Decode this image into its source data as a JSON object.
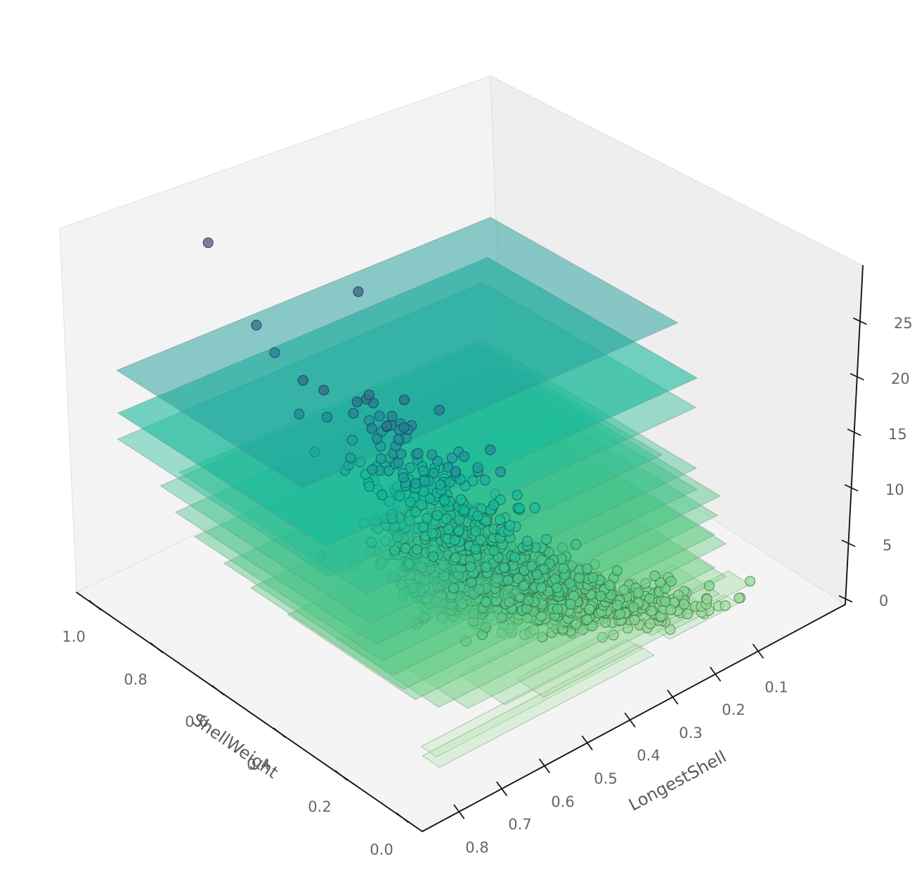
{
  "figure": {
    "background": "#ffffff",
    "kind": "3D scatter plot with horizontal class planes"
  },
  "colors": {
    "pane_left": "#f3f3f3",
    "pane_right": "#eeeeee",
    "pane_floor": "#f4f4f4",
    "pane_edge": "#dfdfdf",
    "spine": "#141414",
    "tick_label": "#666666",
    "axis_label": "#5a5a5a"
  },
  "chart_data": {
    "type": "scatter",
    "projection": "3d",
    "title": "",
    "legend": "none",
    "grid": "off",
    "axes": {
      "x": {
        "label": "LongestShell",
        "ticks": [
          0.8,
          0.7,
          0.6,
          0.5,
          0.4,
          0.3,
          0.2,
          0.1
        ],
        "range": [
          -0.104,
          0.886
        ],
        "note": "values decrease toward right corner"
      },
      "y": {
        "label": "ShellWeight",
        "ticks": [
          1.0,
          0.8,
          0.6,
          0.4,
          0.2,
          0.0
        ],
        "range": [
          -0.064,
          1.06
        ],
        "note": "values decrease toward front corner"
      },
      "z": {
        "label": "",
        "ticks": [
          0,
          5,
          10,
          15,
          20,
          25
        ],
        "range": [
          -0.5,
          30.0
        ]
      }
    },
    "colormap": {
      "name": "green-to-navy (crest-like, high z = dark blue)",
      "domain": [
        0,
        29
      ],
      "stops": [
        [
          0.0,
          "#c5ecbc"
        ],
        [
          0.08,
          "#a6e1a5"
        ],
        [
          0.17,
          "#84d68f"
        ],
        [
          0.26,
          "#64cd85"
        ],
        [
          0.35,
          "#4ac488"
        ],
        [
          0.45,
          "#2ebe93"
        ],
        [
          0.55,
          "#14b99b"
        ],
        [
          0.62,
          "#1d9f9c"
        ],
        [
          0.7,
          "#23869a"
        ],
        [
          0.8,
          "#2f6e8e"
        ],
        [
          0.9,
          "#405c81"
        ],
        [
          1.0,
          "#4b5b7e"
        ]
      ]
    },
    "point_style": {
      "radius": 7.0,
      "fill_alpha": 0.75,
      "edge_darken": 0.42,
      "edge_alpha": 0.85,
      "edge_width": 1.1
    },
    "plane_style": {
      "edge_color": "#6f8a7c",
      "edge_alpha": 0.5,
      "edge_width": 1
    },
    "planes": [
      {
        "z": 18.0,
        "x": [
          -0.05,
          0.812
        ],
        "y": [
          0.418,
          1.002
        ],
        "alpha": 0.5
      },
      {
        "z": 16.0,
        "x": [
          0.0,
          0.853
        ],
        "y": [
          0.288,
          0.945
        ],
        "alpha": 0.58
      },
      {
        "z": 14.5,
        "x": [
          0.03,
          0.872
        ],
        "y": [
          0.25,
          0.922
        ],
        "alpha": 0.42
      },
      {
        "z": 13.0,
        "x": [
          0.14,
          0.82
        ],
        "y": [
          0.205,
          0.8
        ],
        "alpha": 0.4
      },
      {
        "z": 12.0,
        "x": [
          0.1,
          0.85
        ],
        "y": [
          0.15,
          0.82
        ],
        "alpha": 0.4
      },
      {
        "z": 11.0,
        "x": [
          0.12,
          0.86
        ],
        "y": [
          0.12,
          0.76
        ],
        "alpha": 0.42
      },
      {
        "z": 10.0,
        "x": [
          0.08,
          0.86
        ],
        "y": [
          0.1,
          0.7
        ],
        "alpha": 0.45
      },
      {
        "z": 9.0,
        "x": [
          0.1,
          0.85
        ],
        "y": [
          0.08,
          0.62
        ],
        "alpha": 0.45
      },
      {
        "z": 8.0,
        "x": [
          0.12,
          0.84
        ],
        "y": [
          0.06,
          0.55
        ],
        "alpha": 0.45
      },
      {
        "z": 7.0,
        "x": [
          0.1,
          0.82
        ],
        "y": [
          0.05,
          0.46
        ],
        "alpha": 0.45
      },
      {
        "z": 6.0,
        "x": [
          0.14,
          0.78
        ],
        "y": [
          0.03,
          0.36
        ],
        "alpha": 0.45
      },
      {
        "z": 5.0,
        "x": [
          0.12,
          0.72
        ],
        "y": [
          0.02,
          0.25
        ],
        "alpha": 0.42
      },
      {
        "z": 4.0,
        "x": [
          0.14,
          0.64
        ],
        "y": [
          0.012,
          0.16
        ],
        "alpha": 0.4
      },
      {
        "z": 3.5,
        "x": [
          0.07,
          0.3
        ],
        "y": [
          0.01,
          0.08
        ],
        "alpha": 0.38
      },
      {
        "z": 3.0,
        "x": [
          0.16,
          0.55
        ],
        "y": [
          0.01,
          0.1
        ],
        "alpha": 0.38
      },
      {
        "z": 2.5,
        "x": [
          0.1,
          0.26
        ],
        "y": [
          0.005,
          0.05
        ],
        "alpha": 0.35
      },
      {
        "z": 2.0,
        "x": [
          0.3,
          0.8
        ],
        "y": [
          0.0,
          0.055
        ],
        "alpha": 0.33
      },
      {
        "z": 1.0,
        "x": [
          0.28,
          0.76
        ],
        "y": [
          0.065,
          0.115
        ],
        "alpha": 0.33
      }
    ],
    "outlier_points": [
      {
        "x": 0.68,
        "y": 0.88,
        "z": 29
      },
      {
        "x": 0.48,
        "y": 0.69,
        "z": 25
      },
      {
        "x": 0.645,
        "y": 0.785,
        "z": 23
      },
      {
        "x": 0.63,
        "y": 0.75,
        "z": 21
      }
    ],
    "clusters": [
      {
        "rings": 3,
        "n": 8,
        "x_mean": 0.19,
        "x_sd": 0.05,
        "y_mean": 0.015,
        "y_sd": 0.008
      },
      {
        "rings": 4,
        "n": 26,
        "x_mean": 0.245,
        "x_sd": 0.055,
        "y_mean": 0.027,
        "y_sd": 0.013
      },
      {
        "rings": 5,
        "n": 52,
        "x_mean": 0.3,
        "x_sd": 0.065,
        "y_mean": 0.048,
        "y_sd": 0.022
      },
      {
        "rings": 6,
        "n": 110,
        "x_mean": 0.385,
        "x_sd": 0.075,
        "y_mean": 0.082,
        "y_sd": 0.032
      },
      {
        "rings": 7,
        "n": 165,
        "x_mean": 0.44,
        "x_sd": 0.075,
        "y_mean": 0.115,
        "y_sd": 0.042
      },
      {
        "rings": 8,
        "n": 240,
        "x_mean": 0.49,
        "x_sd": 0.07,
        "y_mean": 0.155,
        "y_sd": 0.05
      },
      {
        "rings": 9,
        "n": 290,
        "x_mean": 0.525,
        "x_sd": 0.062,
        "y_mean": 0.19,
        "y_sd": 0.055
      },
      {
        "rings": 10,
        "n": 265,
        "x_mean": 0.55,
        "x_sd": 0.058,
        "y_mean": 0.22,
        "y_sd": 0.06
      },
      {
        "rings": 11,
        "n": 205,
        "x_mean": 0.565,
        "x_sd": 0.055,
        "y_mean": 0.245,
        "y_sd": 0.06
      },
      {
        "rings": 12,
        "n": 112,
        "x_mean": 0.57,
        "x_sd": 0.055,
        "y_mean": 0.26,
        "y_sd": 0.062
      },
      {
        "rings": 13,
        "n": 85,
        "x_mean": 0.575,
        "x_sd": 0.05,
        "y_mean": 0.275,
        "y_sd": 0.065
      },
      {
        "rings": 14,
        "n": 53,
        "x_mean": 0.585,
        "x_sd": 0.05,
        "y_mean": 0.29,
        "y_sd": 0.065
      },
      {
        "rings": 15,
        "n": 43,
        "x_mean": 0.59,
        "x_sd": 0.05,
        "y_mean": 0.305,
        "y_sd": 0.068
      },
      {
        "rings": 16,
        "n": 28,
        "x_mean": 0.59,
        "x_sd": 0.05,
        "y_mean": 0.32,
        "y_sd": 0.07
      },
      {
        "rings": 17,
        "n": 24,
        "x_mean": 0.61,
        "x_sd": 0.045,
        "y_mean": 0.34,
        "y_sd": 0.07
      },
      {
        "rings": 18,
        "n": 18,
        "x_mean": 0.615,
        "x_sd": 0.045,
        "y_mean": 0.355,
        "y_sd": 0.07
      },
      {
        "rings": 19,
        "n": 13,
        "x_mean": 0.62,
        "x_sd": 0.042,
        "y_mean": 0.37,
        "y_sd": 0.07
      },
      {
        "rings": 20,
        "n": 11,
        "x_mean": 0.625,
        "x_sd": 0.04,
        "y_mean": 0.38,
        "y_sd": 0.07
      },
      {
        "rings": 21,
        "n": 6,
        "x_mean": 0.63,
        "x_sd": 0.04,
        "y_mean": 0.39,
        "y_sd": 0.06
      },
      {
        "rings": 22,
        "n": 3,
        "x_mean": 0.64,
        "x_sd": 0.04,
        "y_mean": 0.41,
        "y_sd": 0.06
      },
      {
        "rings": 23,
        "n": 4,
        "x_mean": 0.65,
        "x_sd": 0.04,
        "y_mean": 0.42,
        "y_sd": 0.06
      },
      {
        "rings": 24,
        "n": 2,
        "x_mean": 0.655,
        "x_sd": 0.035,
        "y_mean": 0.44,
        "y_sd": 0.05
      }
    ],
    "seed": 42
  }
}
